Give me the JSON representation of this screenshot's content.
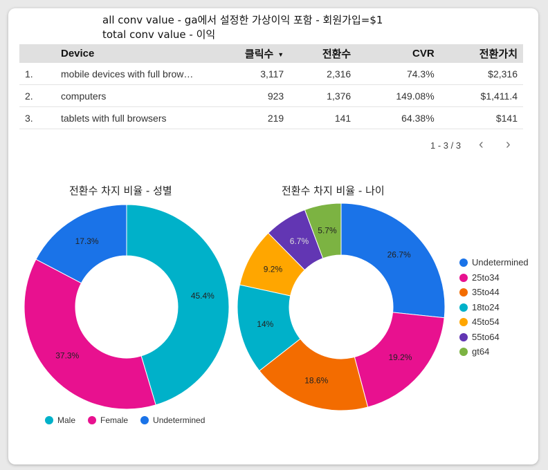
{
  "notes": {
    "line1": "all conv value - ga에서 설정한 가상이익 포함 - 회원가입=$1",
    "line2": "total conv value - 이익"
  },
  "table": {
    "headers": {
      "device": "Device",
      "clicks": "클릭수",
      "conversions": "전환수",
      "cvr": "CVR",
      "value": "전환가치"
    },
    "sort_icon": "sort-descending-icon",
    "rows": [
      {
        "no": "1.",
        "device": "mobile devices with full browsers",
        "clicks": "3,117",
        "conversions": "2,316",
        "cvr": "74.3%",
        "value": "$2,316"
      },
      {
        "no": "2.",
        "device": "computers",
        "clicks": "923",
        "conversions": "1,376",
        "cvr": "149.08%",
        "value": "$1,411.4"
      },
      {
        "no": "3.",
        "device": "tablets with full browsers",
        "clicks": "219",
        "conversions": "141",
        "cvr": "64.38%",
        "value": "$141"
      }
    ],
    "pager": "1 - 3 / 3"
  },
  "colors": {
    "blue": "#1a73e8",
    "pink": "#e8118f",
    "orange": "#f36c00",
    "teal": "#00b1c9",
    "amber": "#ffa600",
    "purple": "#6236b3",
    "green": "#7cb342"
  },
  "chart_data": [
    {
      "type": "pie",
      "title": "전환수 차지 비율 - 성별",
      "legend_position": "bottom",
      "slices": [
        {
          "label": "Male",
          "value": 45.4,
          "display": "45.4%",
          "color": "#00b1c9"
        },
        {
          "label": "Female",
          "value": 37.3,
          "display": "37.3%",
          "color": "#e8118f"
        },
        {
          "label": "Undetermined",
          "value": 17.3,
          "display": "17.3%",
          "color": "#1a73e8"
        }
      ]
    },
    {
      "type": "pie",
      "title": "전환수 차지 비율 - 나이",
      "legend_position": "right",
      "slices": [
        {
          "label": "Undetermined",
          "value": 26.7,
          "display": "26.7%",
          "color": "#1a73e8"
        },
        {
          "label": "25to34",
          "value": 19.2,
          "display": "19.2%",
          "color": "#e8118f"
        },
        {
          "label": "35to44",
          "value": 18.6,
          "display": "18.6%",
          "color": "#f36c00"
        },
        {
          "label": "18to24",
          "value": 14,
          "display": "14%",
          "color": "#00b1c9"
        },
        {
          "label": "45to54",
          "value": 9.2,
          "display": "9.2%",
          "color": "#ffa600"
        },
        {
          "label": "55to64",
          "value": 6.7,
          "display": "6.7%",
          "color": "#6236b3"
        },
        {
          "label": "gt64",
          "value": 5.7,
          "display": "5.7%",
          "color": "#7cb342"
        }
      ]
    }
  ]
}
